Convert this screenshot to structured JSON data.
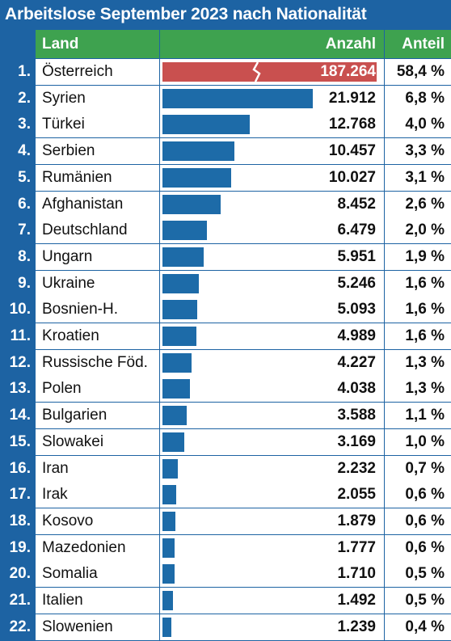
{
  "title": "Arbeitslose September 2023 nach Nationalität",
  "headers": {
    "land": "Land",
    "anzahl": "Anzahl",
    "anteil": "Anteil"
  },
  "colors": {
    "frame": "#1d63a3",
    "header": "#3ea24f",
    "bar": "#1d6ba8",
    "bar_highlight": "#c9504f"
  },
  "chart_data": {
    "type": "bar",
    "orientation": "horizontal",
    "title": "Arbeitslose September 2023 nach Nationalität",
    "axis_break": true,
    "rows": [
      {
        "rank": "1.",
        "land": "Österreich",
        "anzahl": "187.264",
        "anteil": "58,4 %",
        "value": 187264
      },
      {
        "rank": "2.",
        "land": "Syrien",
        "anzahl": "21.912",
        "anteil": "6,8 %",
        "value": 21912
      },
      {
        "rank": "3.",
        "land": "Türkei",
        "anzahl": "12.768",
        "anteil": "4,0 %",
        "value": 12768
      },
      {
        "rank": "4.",
        "land": "Serbien",
        "anzahl": "10.457",
        "anteil": "3,3 %",
        "value": 10457
      },
      {
        "rank": "5.",
        "land": "Rumänien",
        "anzahl": "10.027",
        "anteil": "3,1 %",
        "value": 10027
      },
      {
        "rank": "6.",
        "land": "Afghanistan",
        "anzahl": "8.452",
        "anteil": "2,6 %",
        "value": 8452
      },
      {
        "rank": "7.",
        "land": "Deutschland",
        "anzahl": "6.479",
        "anteil": "2,0 %",
        "value": 6479
      },
      {
        "rank": "8.",
        "land": "Ungarn",
        "anzahl": "5.951",
        "anteil": "1,9 %",
        "value": 5951
      },
      {
        "rank": "9.",
        "land": "Ukraine",
        "anzahl": "5.246",
        "anteil": "1,6 %",
        "value": 5246
      },
      {
        "rank": "10.",
        "land": "Bosnien-H.",
        "anzahl": "5.093",
        "anteil": "1,6 %",
        "value": 5093
      },
      {
        "rank": "11.",
        "land": "Kroatien",
        "anzahl": "4.989",
        "anteil": "1,6 %",
        "value": 4989
      },
      {
        "rank": "12.",
        "land": "Russische Föd.",
        "anzahl": "4.227",
        "anteil": "1,3 %",
        "value": 4227
      },
      {
        "rank": "13.",
        "land": "Polen",
        "anzahl": "4.038",
        "anteil": "1,3 %",
        "value": 4038
      },
      {
        "rank": "14.",
        "land": "Bulgarien",
        "anzahl": "3.588",
        "anteil": "1,1 %",
        "value": 3588
      },
      {
        "rank": "15.",
        "land": "Slowakei",
        "anzahl": "3.169",
        "anteil": "1,0 %",
        "value": 3169
      },
      {
        "rank": "16.",
        "land": "Iran",
        "anzahl": "2.232",
        "anteil": "0,7 %",
        "value": 2232
      },
      {
        "rank": "17.",
        "land": "Irak",
        "anzahl": "2.055",
        "anteil": "0,6 %",
        "value": 2055
      },
      {
        "rank": "18.",
        "land": "Kosovo",
        "anzahl": "1.879",
        "anteil": "0,6 %",
        "value": 1879
      },
      {
        "rank": "19.",
        "land": "Mazedonien",
        "anzahl": "1.777",
        "anteil": "0,6 %",
        "value": 1777
      },
      {
        "rank": "20.",
        "land": "Somalia",
        "anzahl": "1.710",
        "anteil": "0,5 %",
        "value": 1710
      },
      {
        "rank": "21.",
        "land": "Italien",
        "anzahl": "1.492",
        "anteil": "0,5 %",
        "value": 1492
      },
      {
        "rank": "22.",
        "land": "Slowenien",
        "anzahl": "1.239",
        "anteil": "0,4 %",
        "value": 1239
      }
    ]
  }
}
